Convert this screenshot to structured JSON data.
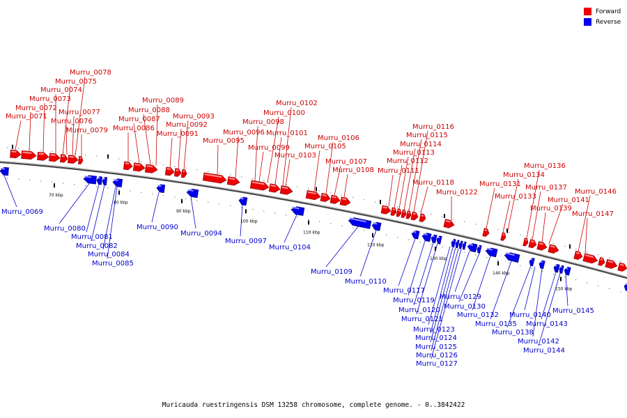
{
  "legend": {
    "forward_label": "Forward",
    "reverse_label": "Reverse",
    "forward_color": "#ee0000",
    "reverse_color": "#0000ee"
  },
  "caption": "Muricauda ruestringensis DSM 13258 chromosome, complete genome. - 0..3842422",
  "kbp_ticks": [
    "70 kbp",
    "80 kbp",
    "90 kbp",
    "100 kbp",
    "110 kbp",
    "120 kbp",
    "130 kbp",
    "140 kbp",
    "150 kbp"
  ],
  "genes_forward": [
    "Murru_0071",
    "Murru_0072",
    "Murru_0073",
    "Murru_0074",
    "Murru_0075",
    "Murru_0076",
    "Murru_0077",
    "Murru_0078",
    "Murru_0079",
    "Murru_0086",
    "Murru_0087",
    "Murru_0088",
    "Murru_0089",
    "Murru_0091",
    "Murru_0092",
    "Murru_0093",
    "Murru_0095",
    "Murru_0096",
    "Murru_0098",
    "Murru_0099",
    "Murru_0100",
    "Murru_0101",
    "Murru_0102",
    "Murru_0103",
    "Murru_0105",
    "Murru_0106",
    "Murru_0107",
    "Murru_0108",
    "Murru_0111",
    "Murru_0112",
    "Murru_0113",
    "Murru_0114",
    "Murru_0115",
    "Murru_0116",
    "Murru_0118",
    "Murru_0122",
    "Murru_0131",
    "Murru_0133",
    "Murru_0134",
    "Murru_0136",
    "Murru_0137",
    "Murru_0139",
    "Murru_0141",
    "Murru_0146",
    "Murru_0147"
  ],
  "genes_reverse": [
    "Murru_0069",
    "Murru_0080",
    "Murru_0081",
    "Murru_0082",
    "Murru_0084",
    "Murru_0085",
    "Murru_0090",
    "Murru_0094",
    "Murru_0097",
    "Murru_0104",
    "Murru_0109",
    "Murru_0110",
    "Murru_0117",
    "Murru_0119",
    "Murru_0120",
    "Murru_0121",
    "Murru_0123",
    "Murru_0124",
    "Murru_0125",
    "Murru_0126",
    "Murru_0127",
    "Murru_0129",
    "Murru_0130",
    "Murru_0132",
    "Murru_0135",
    "Murru_0138",
    "Murru_0140",
    "Murru_0142",
    "Murru_0143",
    "Murru_0144",
    "Murru_0145"
  ]
}
